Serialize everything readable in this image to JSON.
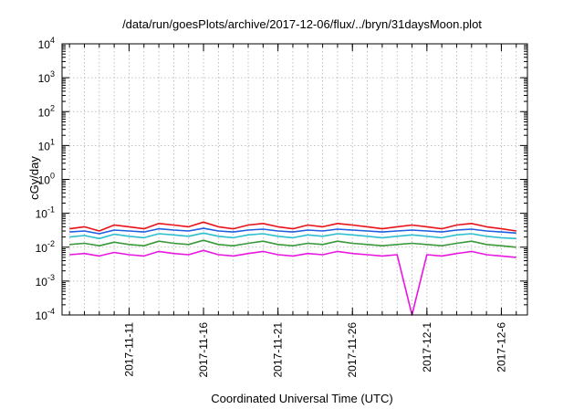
{
  "chart_data": {
    "type": "line",
    "title": "/data/run/goesPlots/archive/2017-12-06/flux/../bryn/31daysMoon.plot",
    "xlabel": "Coordinated Universal Time (UTC)",
    "ylabel": "cGy/day",
    "yscale": "log",
    "ylim": [
      0.0001,
      10000
    ],
    "xlim": [
      "2017-11-06T12:00",
      "2017-12-07T18:00"
    ],
    "grid": true,
    "x_ticks": [
      "2017-11-11",
      "2017-11-16",
      "2017-11-21",
      "2017-11-26",
      "2017-12-1",
      "2017-12-6"
    ],
    "x_tick_dates": [
      "2017-11-11",
      "2017-11-16",
      "2017-11-21",
      "2017-11-26",
      "2017-12-01",
      "2017-12-06"
    ],
    "y_ticks": [
      {
        "base": "10",
        "exp": "-4",
        "value": 0.0001
      },
      {
        "base": "10",
        "exp": "-3",
        "value": 0.001
      },
      {
        "base": "10",
        "exp": "-2",
        "value": 0.01
      },
      {
        "base": "10",
        "exp": "-1",
        "value": 0.1
      },
      {
        "base": "10",
        "exp": "0",
        "value": 1
      },
      {
        "base": "10",
        "exp": "1",
        "value": 10
      },
      {
        "base": "10",
        "exp": "2",
        "value": 100
      },
      {
        "base": "10",
        "exp": "3",
        "value": 1000
      },
      {
        "base": "10",
        "exp": "4",
        "value": 10000
      }
    ],
    "x": [
      "2017-11-07",
      "2017-11-08",
      "2017-11-09",
      "2017-11-10",
      "2017-11-11",
      "2017-11-12",
      "2017-11-13",
      "2017-11-14",
      "2017-11-15",
      "2017-11-16",
      "2017-11-17",
      "2017-11-18",
      "2017-11-19",
      "2017-11-20",
      "2017-11-21",
      "2017-11-22",
      "2017-11-23",
      "2017-11-24",
      "2017-11-25",
      "2017-11-26",
      "2017-11-27",
      "2017-11-28",
      "2017-11-29",
      "2017-11-30",
      "2017-12-01",
      "2017-12-02",
      "2017-12-03",
      "2017-12-04",
      "2017-12-05",
      "2017-12-06",
      "2017-12-07"
    ],
    "series": [
      {
        "color": "#e8121a",
        "values": [
          0.035,
          0.04,
          0.03,
          0.045,
          0.04,
          0.035,
          0.05,
          0.045,
          0.04,
          0.055,
          0.04,
          0.035,
          0.045,
          0.05,
          0.04,
          0.035,
          0.045,
          0.04,
          0.05,
          0.045,
          0.04,
          0.035,
          0.04,
          0.045,
          0.04,
          0.035,
          0.045,
          0.05,
          0.04,
          0.035,
          0.03
        ]
      },
      {
        "color": "#1f5fe0",
        "values": [
          0.028,
          0.03,
          0.025,
          0.032,
          0.03,
          0.028,
          0.035,
          0.032,
          0.03,
          0.036,
          0.03,
          0.028,
          0.032,
          0.034,
          0.03,
          0.028,
          0.032,
          0.03,
          0.034,
          0.032,
          0.03,
          0.028,
          0.03,
          0.032,
          0.03,
          0.028,
          0.032,
          0.034,
          0.03,
          0.028,
          0.026
        ]
      },
      {
        "color": "#2dbfcf",
        "values": [
          0.02,
          0.022,
          0.018,
          0.024,
          0.021,
          0.019,
          0.025,
          0.023,
          0.021,
          0.026,
          0.021,
          0.019,
          0.023,
          0.025,
          0.021,
          0.019,
          0.023,
          0.021,
          0.025,
          0.023,
          0.021,
          0.019,
          0.021,
          0.023,
          0.021,
          0.019,
          0.023,
          0.025,
          0.021,
          0.019,
          0.018
        ]
      },
      {
        "color": "#3a9a3a",
        "values": [
          0.012,
          0.013,
          0.011,
          0.014,
          0.012,
          0.011,
          0.015,
          0.013,
          0.012,
          0.016,
          0.012,
          0.011,
          0.013,
          0.015,
          0.012,
          0.011,
          0.013,
          0.012,
          0.015,
          0.013,
          0.012,
          0.011,
          0.012,
          0.013,
          0.012,
          0.011,
          0.013,
          0.015,
          0.012,
          0.011,
          0.01
        ]
      },
      {
        "color": "#e818e0",
        "values": [
          0.006,
          0.0065,
          0.0055,
          0.007,
          0.006,
          0.0055,
          0.0075,
          0.0065,
          0.006,
          0.008,
          0.006,
          0.0055,
          0.0065,
          0.0075,
          0.006,
          0.0055,
          0.0065,
          0.006,
          0.0075,
          0.0065,
          0.006,
          0.0055,
          0.006,
          0.0001,
          0.006,
          0.0055,
          0.0065,
          0.0075,
          0.006,
          0.0055,
          0.005
        ]
      }
    ]
  }
}
